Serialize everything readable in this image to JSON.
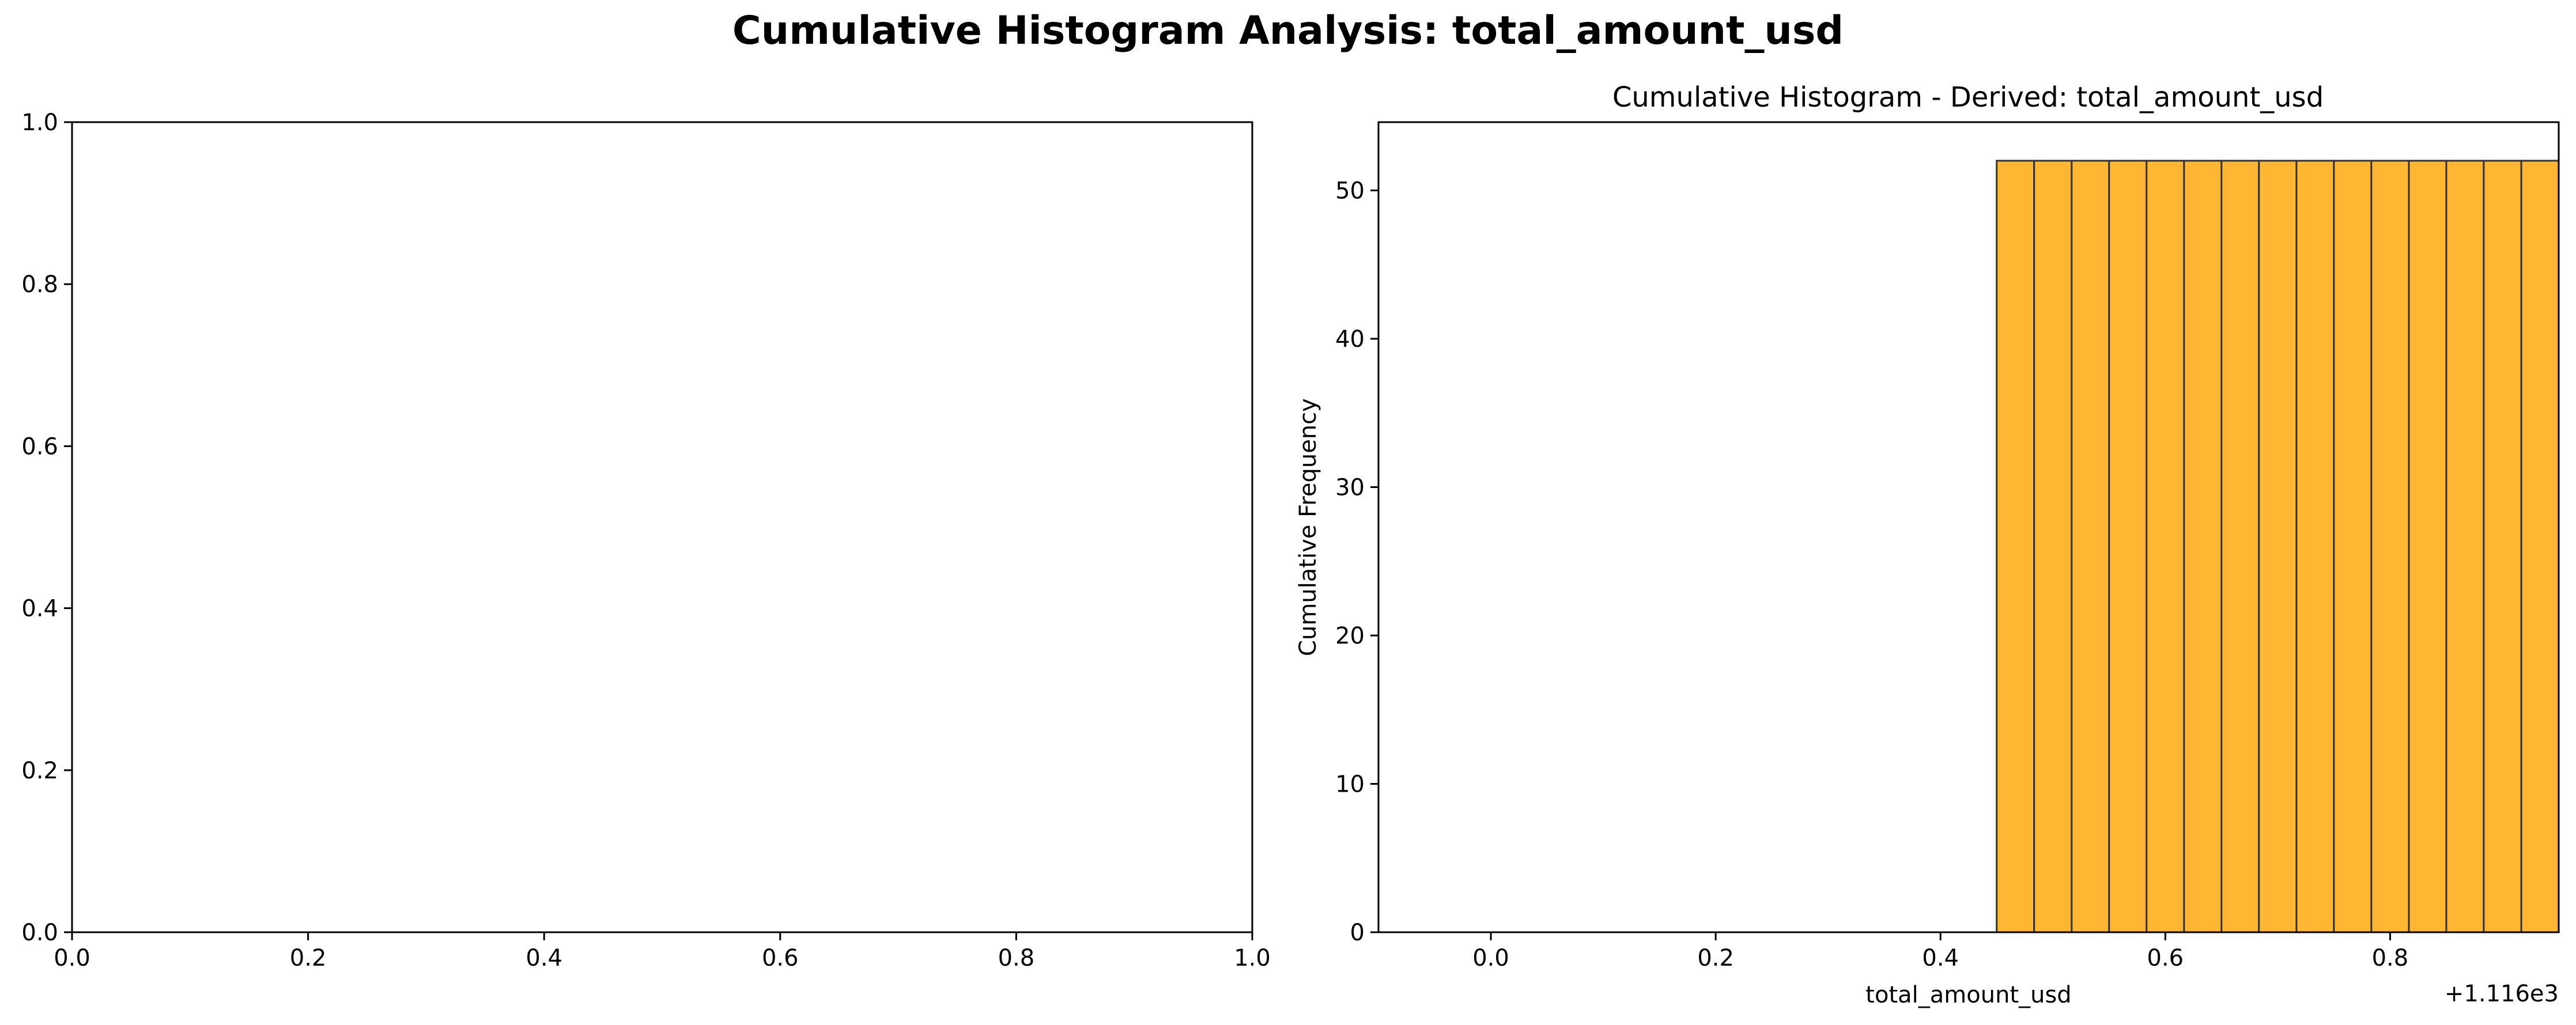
{
  "figure": {
    "suptitle": "Cumulative Histogram Analysis: total_amount_usd"
  },
  "chart_data": [
    {
      "type": "bar",
      "title": "",
      "xlabel": "",
      "ylabel": "",
      "xlim": [
        0,
        1
      ],
      "ylim": [
        0,
        1
      ],
      "xticks": [
        "0.0",
        "0.2",
        "0.4",
        "0.6",
        "0.8",
        "1.0"
      ],
      "yticks": [
        "0.0",
        "0.2",
        "0.4",
        "0.6",
        "0.8",
        "1.0"
      ],
      "values": []
    },
    {
      "type": "bar",
      "title": "Cumulative Histogram - Derived: total_amount_usd",
      "xlabel": "total_amount_usd",
      "ylabel": "Cumulative Frequency",
      "x_offset_label": "+1.116e3",
      "xlim": [
        -0.1,
        0.95
      ],
      "ylim": [
        0,
        54.6
      ],
      "xticks": [
        "0.0",
        "0.2",
        "0.4",
        "0.6",
        "0.8"
      ],
      "yticks": [
        "0",
        "10",
        "20",
        "30",
        "40",
        "50"
      ],
      "cumulative": true,
      "bar_color": "#ffb733",
      "edge_color": "#333333",
      "bin_edges": [
        -0.05,
        -0.0167,
        0.0167,
        0.05,
        0.0833,
        0.1167,
        0.15,
        0.1833,
        0.2167,
        0.25,
        0.2833,
        0.3167,
        0.35,
        0.3833,
        0.4167,
        0.45,
        0.4833,
        0.5167,
        0.55,
        0.5833,
        0.6167,
        0.65,
        0.6833,
        0.7167,
        0.75,
        0.7833,
        0.8167,
        0.85,
        0.8833,
        0.9167,
        0.95
      ],
      "values": [
        0,
        0,
        0,
        0,
        0,
        0,
        0,
        0,
        0,
        0,
        0,
        0,
        0,
        0,
        0,
        52,
        52,
        52,
        52,
        52,
        52,
        52,
        52,
        52,
        52,
        52,
        52,
        52,
        52,
        52
      ]
    }
  ]
}
